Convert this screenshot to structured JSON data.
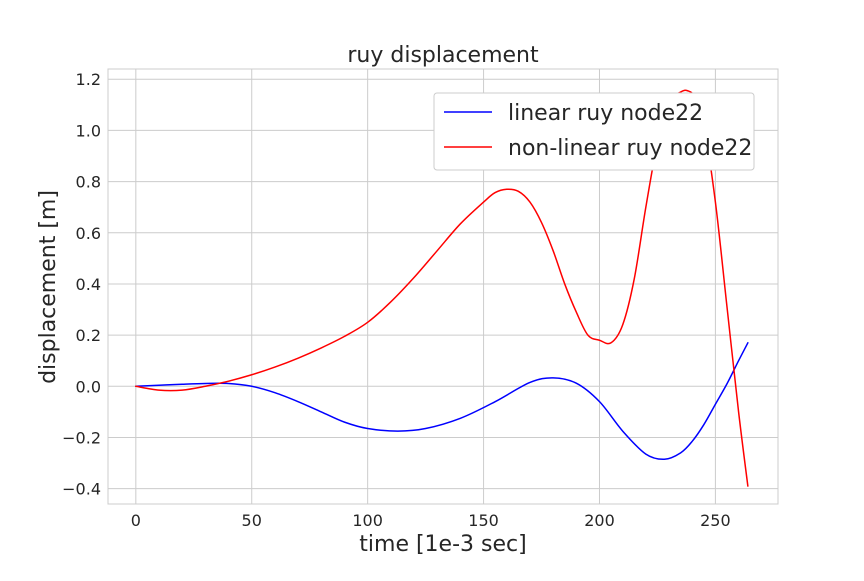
{
  "chart_data": {
    "type": "line",
    "title": "ruy displacement",
    "xlabel": "time [1e-3 sec]",
    "ylabel": "displacement [m]",
    "xlim": [
      -12,
      277
    ],
    "ylim": [
      -0.46,
      1.24
    ],
    "grid": true,
    "legend_position": "top-right",
    "xticks": [
      0,
      50,
      100,
      150,
      200,
      250
    ],
    "xtick_labels": [
      "0",
      "50",
      "100",
      "150",
      "200",
      "250"
    ],
    "yticks": [
      -0.4,
      -0.2,
      0.0,
      0.2,
      0.4,
      0.6,
      0.8,
      1.0,
      1.2
    ],
    "ytick_labels": [
      "−0.4",
      "−0.2",
      "0.0",
      "0.2",
      "0.4",
      "0.6",
      "0.8",
      "1.0",
      "1.2"
    ],
    "series": [
      {
        "name": "linear ruy node22",
        "color": "#0000ff",
        "x": [
          0,
          10,
          20,
          30,
          40,
          50,
          60,
          70,
          80,
          90,
          100,
          113,
          125,
          140,
          155,
          170,
          180,
          190,
          200,
          210,
          220,
          228,
          235,
          240,
          245,
          250,
          255,
          260,
          264
        ],
        "y": [
          0.0,
          0.004,
          0.008,
          0.011,
          0.011,
          0.0,
          -0.025,
          -0.06,
          -0.1,
          -0.14,
          -0.165,
          -0.175,
          -0.165,
          -0.125,
          -0.06,
          0.015,
          0.033,
          0.012,
          -0.06,
          -0.175,
          -0.265,
          -0.285,
          -0.26,
          -0.215,
          -0.15,
          -0.07,
          0.01,
          0.1,
          0.17
        ]
      },
      {
        "name": "non-linear ruy node22",
        "color": "#ff0000",
        "x": [
          0,
          10,
          20,
          30,
          40,
          50,
          60,
          70,
          80,
          90,
          100,
          110,
          120,
          130,
          140,
          150,
          155,
          160,
          165,
          170,
          175,
          180,
          185,
          190,
          195,
          200,
          205,
          210,
          215,
          220,
          225,
          230,
          235,
          238,
          241,
          245,
          250,
          255,
          260,
          264
        ],
        "y": [
          0.0,
          -0.015,
          -0.015,
          0.0,
          0.02,
          0.045,
          0.075,
          0.11,
          0.15,
          0.195,
          0.25,
          0.33,
          0.425,
          0.53,
          0.635,
          0.72,
          0.757,
          0.77,
          0.762,
          0.72,
          0.64,
          0.53,
          0.4,
          0.29,
          0.2,
          0.18,
          0.17,
          0.24,
          0.42,
          0.7,
          0.95,
          1.11,
          1.15,
          1.155,
          1.13,
          1.02,
          0.72,
          0.31,
          -0.1,
          -0.39
        ]
      }
    ]
  }
}
